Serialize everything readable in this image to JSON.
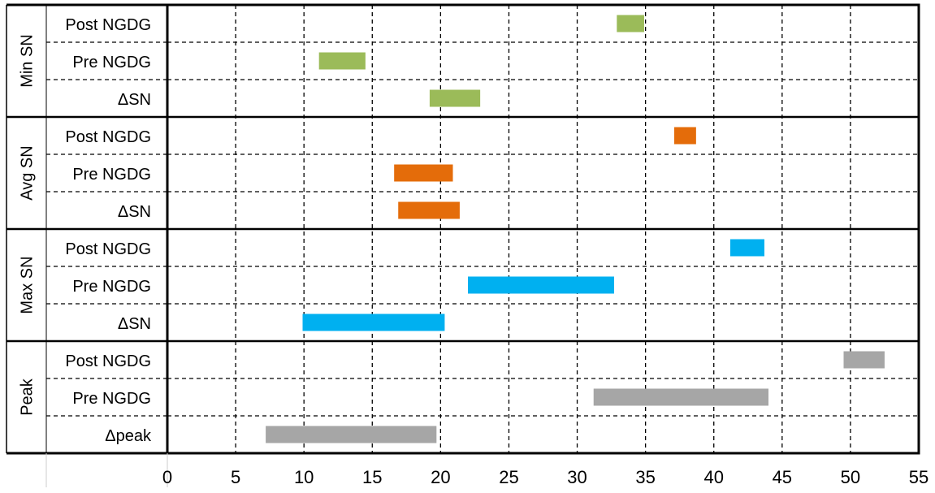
{
  "chart_data": {
    "type": "bar",
    "orientation": "horizontal-range",
    "x_ticks": [
      0,
      5,
      10,
      15,
      20,
      25,
      30,
      35,
      40,
      45,
      50,
      55
    ],
    "xlim": [
      0,
      55
    ],
    "grid": true,
    "groups": [
      {
        "name": "Min SN",
        "color": "#9bbb59",
        "rows": [
          {
            "label": "Post NGDG",
            "start": 32.9,
            "end": 34.9
          },
          {
            "label": "Pre NGDG",
            "start": 11.1,
            "end": 14.5
          },
          {
            "label": "ΔSN",
            "start": 19.2,
            "end": 22.9
          }
        ]
      },
      {
        "name": "Avg SN",
        "color": "#e46c0a",
        "rows": [
          {
            "label": "Post NGDG",
            "start": 37.1,
            "end": 38.7
          },
          {
            "label": "Pre NGDG",
            "start": 16.6,
            "end": 20.9
          },
          {
            "label": "ΔSN",
            "start": 16.9,
            "end": 21.4
          }
        ]
      },
      {
        "name": "Max SN",
        "color": "#00b0f0",
        "rows": [
          {
            "label": "Post NGDG",
            "start": 41.2,
            "end": 43.7
          },
          {
            "label": "Pre NGDG",
            "start": 22.0,
            "end": 32.7
          },
          {
            "label": "ΔSN",
            "start": 9.9,
            "end": 20.3
          }
        ]
      },
      {
        "name": "Peak",
        "color": "#a6a6a6",
        "rows": [
          {
            "label": "Post NGDG",
            "start": 49.5,
            "end": 52.5
          },
          {
            "label": "Pre NGDG",
            "start": 31.2,
            "end": 44.0
          },
          {
            "label": "Δpeak",
            "start": 7.2,
            "end": 19.7
          }
        ]
      }
    ]
  }
}
